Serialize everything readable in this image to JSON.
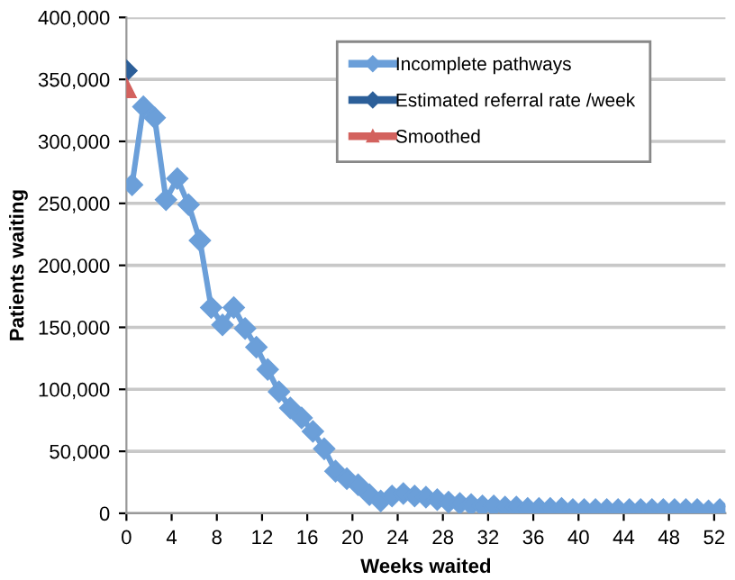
{
  "chart_data": {
    "type": "line",
    "xlabel": "Weeks waited",
    "ylabel": "Patients waiting",
    "xlim": [
      0,
      53
    ],
    "xticks": [
      0,
      4,
      8,
      12,
      16,
      20,
      24,
      28,
      32,
      36,
      40,
      44,
      48,
      52
    ],
    "ylim": [
      0,
      400000
    ],
    "yticks": [
      {
        "value": 0,
        "label": "0"
      },
      {
        "value": 50000,
        "label": "50,000"
      },
      {
        "value": 100000,
        "label": "100,000"
      },
      {
        "value": 150000,
        "label": "150,000"
      },
      {
        "value": 200000,
        "label": "200,000"
      },
      {
        "value": 250000,
        "label": "250,000"
      },
      {
        "value": 300000,
        "label": "300,000"
      },
      {
        "value": 350000,
        "label": "350,000"
      },
      {
        "value": 400000,
        "label": "400,000"
      }
    ],
    "grid": "y",
    "legend": "top right",
    "series": [
      {
        "name": "Incomplete pathways",
        "color": "#6b9fd9",
        "marker": "diamond",
        "x": [
          0.5,
          1.5,
          2.5,
          3.5,
          4.5,
          5.5,
          6.5,
          7.5,
          8.5,
          9.5,
          10.5,
          11.5,
          12.5,
          13.5,
          14.5,
          15.5,
          16.5,
          17.5,
          18.5,
          19.5,
          20.5,
          21.5,
          22.5,
          23.5,
          24.5,
          25.5,
          26.5,
          27.5,
          28.5,
          29.5,
          30.5,
          31.5,
          32.5,
          33.5,
          34.5,
          35.5,
          36.5,
          37.5,
          38.5,
          39.5,
          40.5,
          41.5,
          42.5,
          43.5,
          44.5,
          45.5,
          46.5,
          47.5,
          48.5,
          49.5,
          50.5,
          51.5,
          52.5
        ],
        "values": [
          265000,
          328000,
          319000,
          253000,
          270000,
          249000,
          220000,
          166000,
          152000,
          166000,
          149000,
          134000,
          116000,
          98000,
          85000,
          77000,
          66000,
          52000,
          34000,
          28000,
          23000,
          15000,
          10000,
          14000,
          16000,
          14000,
          13000,
          11000,
          9000,
          8000,
          7000,
          6000,
          6000,
          5000,
          5000,
          4000,
          4000,
          4000,
          4000,
          3000,
          3000,
          3000,
          3000,
          3000,
          3000,
          3000,
          3000,
          3000,
          3000,
          3000,
          3000,
          2000,
          3000
        ]
      },
      {
        "name": "Estimated referral rate /week",
        "color": "#2c5f99",
        "marker": "diamond",
        "x": [
          0
        ],
        "values": [
          357000
        ]
      },
      {
        "name": "Smoothed",
        "color": "#d3625e",
        "marker": "triangle",
        "x": [
          0
        ],
        "values": [
          343000
        ]
      }
    ]
  }
}
